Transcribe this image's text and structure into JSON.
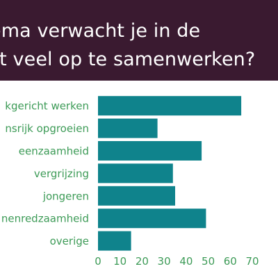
{
  "colors": {
    "header_bg": "#3a1a30",
    "bar": "#0f838c",
    "label": "#3d9b57",
    "header_text": "#ffffff"
  },
  "header": {
    "line1": "ema verwacht je in de",
    "line2": "st veel op te samenwerken?"
  },
  "chart_data": {
    "type": "bar",
    "orientation": "horizontal",
    "categories": [
      "kgericht werken",
      "nsrijk opgroeien",
      "eenzaamheid",
      "vergrijzing",
      "jongeren",
      "nenredzaamheid",
      "overige"
    ],
    "values": [
      65,
      27,
      47,
      34,
      35,
      49,
      15
    ],
    "xlim": [
      0,
      70
    ],
    "xticks": [
      "0",
      "10",
      "20",
      "30",
      "40",
      "50",
      "60",
      "70"
    ],
    "title": "",
    "xlabel": "",
    "ylabel": "",
    "grid": false
  }
}
